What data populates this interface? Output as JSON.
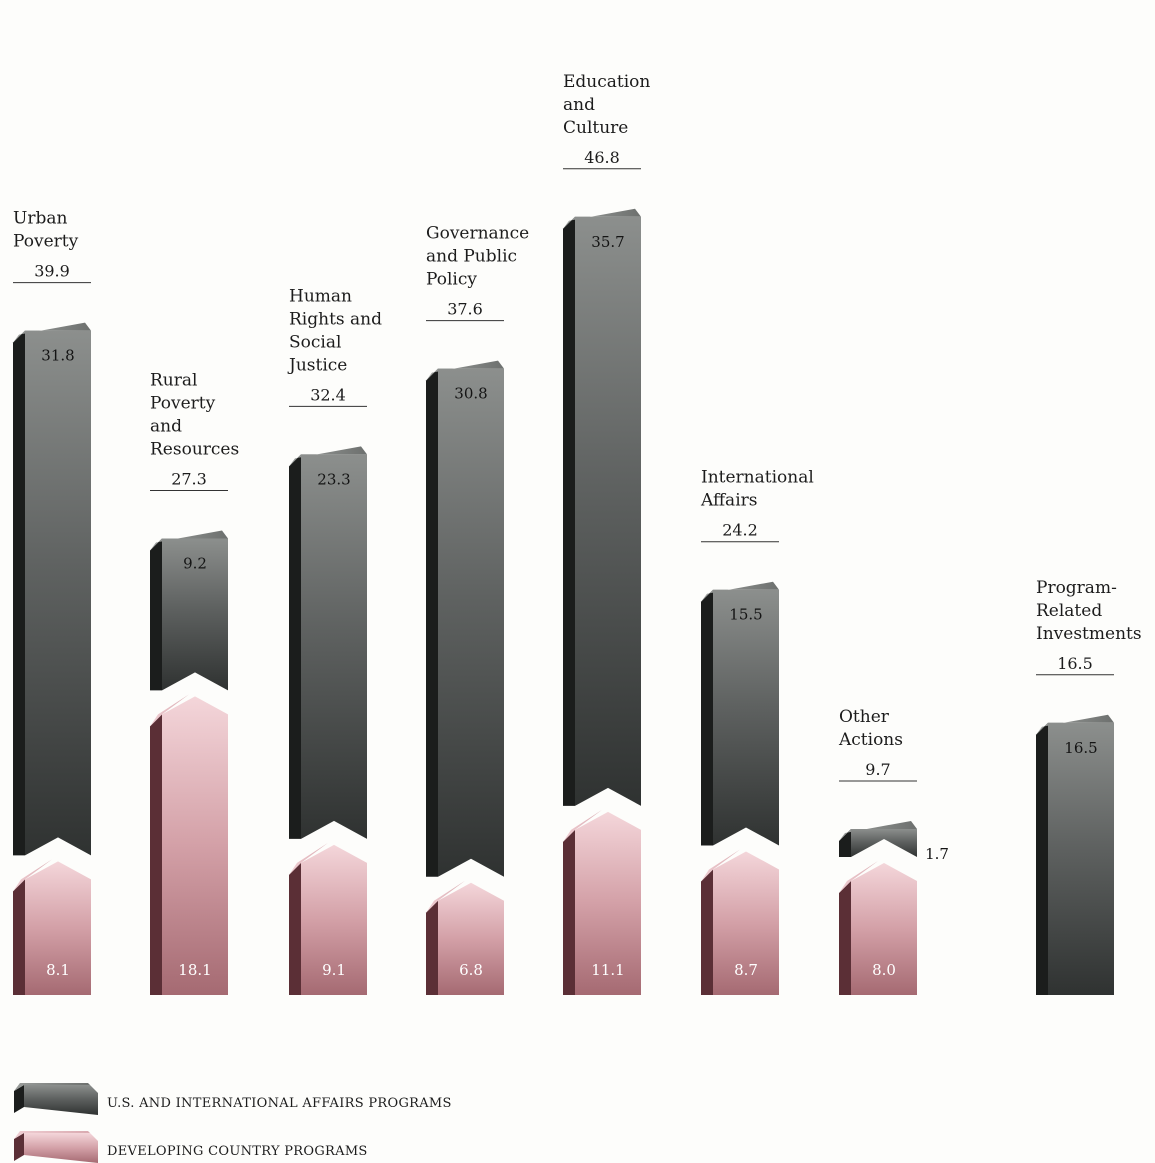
{
  "chart_data": {
    "type": "bar",
    "stacked": true,
    "categories": [
      [
        "Urban",
        "Poverty"
      ],
      [
        "Rural",
        "Poverty",
        "and",
        "Resources"
      ],
      [
        "Human",
        "Rights and",
        "Social",
        "Justice"
      ],
      [
        "Governance",
        "and Public",
        "Policy"
      ],
      [
        "Education",
        "and",
        "Culture"
      ],
      [
        "International",
        "Affairs"
      ],
      [
        "Other",
        "Actions"
      ],
      [
        "Program-",
        "Related",
        "Investments"
      ]
    ],
    "totals": [
      "39.9",
      "27.3",
      "32.4",
      "37.6",
      "46.8",
      "24.2",
      "9.7",
      "16.5"
    ],
    "series": [
      {
        "name": "U.S. AND INTERNATIONAL AFFAIRS PROGRAMS",
        "values": [
          31.8,
          9.2,
          23.3,
          30.8,
          35.7,
          15.5,
          1.7,
          16.5
        ],
        "labels": [
          "31.8",
          "9.2",
          "23.3",
          "30.8",
          "35.7",
          "15.5",
          "1.7",
          "16.5"
        ],
        "color": "#4a4d4b"
      },
      {
        "name": "DEVELOPING COUNTRY PROGRAMS",
        "values": [
          8.1,
          18.1,
          9.1,
          6.8,
          11.1,
          8.7,
          8.0,
          null
        ],
        "labels": [
          "8.1",
          "18.1",
          "9.1",
          "6.8",
          "11.1",
          "8.7",
          "8.0",
          ""
        ],
        "color": "#b57f86"
      }
    ],
    "legend_position": "bottom-left",
    "grid": false
  }
}
